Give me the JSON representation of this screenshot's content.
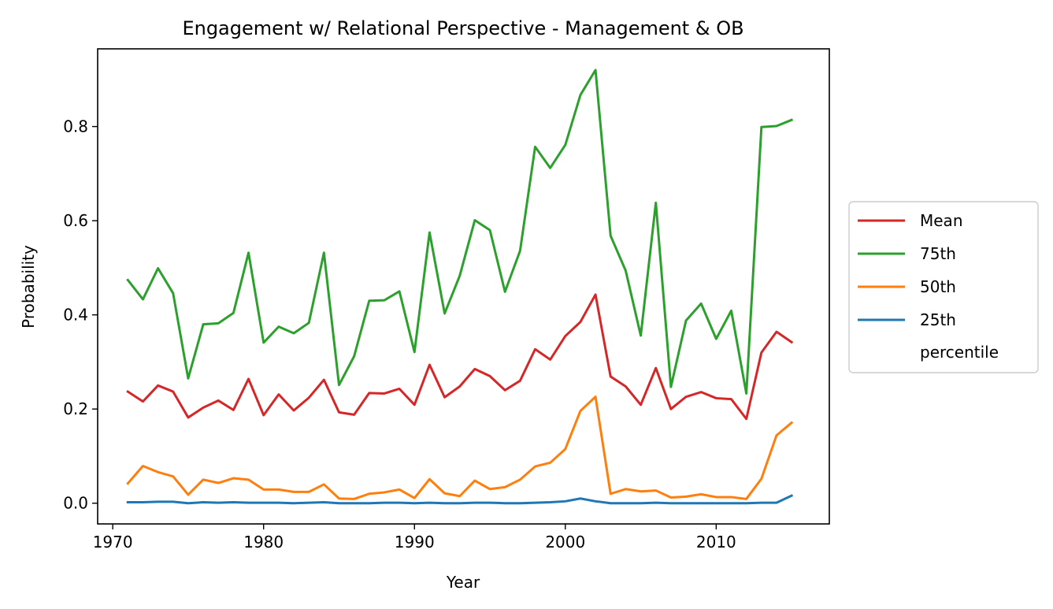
{
  "chart_data": {
    "type": "line",
    "title": "Engagement w/ Relational Perspective - Management & OB",
    "xlabel": "Year",
    "ylabel": "Probability",
    "xlim": [
      1969,
      2017.5
    ],
    "ylim": [
      -0.044,
      0.965
    ],
    "xticks": [
      1970,
      1980,
      1990,
      2000,
      2010
    ],
    "yticks": [
      0.0,
      0.2,
      0.4,
      0.6,
      0.8
    ],
    "ytick_labels": [
      "0.0",
      "0.2",
      "0.4",
      "0.6",
      "0.8"
    ],
    "grid": false,
    "legend_placement": "right-outside",
    "legend_extra_text": "percentile",
    "x": [
      1971,
      1972,
      1973,
      1974,
      1975,
      1976,
      1977,
      1978,
      1979,
      1980,
      1981,
      1982,
      1983,
      1984,
      1985,
      1986,
      1987,
      1988,
      1989,
      1990,
      1991,
      1992,
      1993,
      1994,
      1995,
      1996,
      1997,
      1998,
      1999,
      2000,
      2001,
      2002,
      2003,
      2004,
      2005,
      2006,
      2007,
      2008,
      2009,
      2010,
      2011,
      2012,
      2013,
      2014,
      2015
    ],
    "series": [
      {
        "name": "Mean",
        "color": "#d62728",
        "values": [
          0.237,
          0.216,
          0.25,
          0.237,
          0.182,
          0.203,
          0.218,
          0.198,
          0.264,
          0.187,
          0.231,
          0.197,
          0.224,
          0.262,
          0.193,
          0.188,
          0.234,
          0.233,
          0.243,
          0.209,
          0.294,
          0.225,
          0.248,
          0.285,
          0.27,
          0.24,
          0.26,
          0.327,
          0.305,
          0.355,
          0.385,
          0.443,
          0.269,
          0.248,
          0.209,
          0.287,
          0.2,
          0.226,
          0.236,
          0.223,
          0.221,
          0.179,
          0.32,
          0.364,
          0.342
        ]
      },
      {
        "name": "75th",
        "color": "#2ca02c",
        "values": [
          0.474,
          0.433,
          0.499,
          0.446,
          0.265,
          0.38,
          0.382,
          0.404,
          0.532,
          0.341,
          0.375,
          0.361,
          0.383,
          0.532,
          0.251,
          0.312,
          0.43,
          0.431,
          0.45,
          0.321,
          0.575,
          0.403,
          0.483,
          0.601,
          0.58,
          0.449,
          0.536,
          0.757,
          0.712,
          0.761,
          0.867,
          0.92,
          0.568,
          0.494,
          0.356,
          0.638,
          0.247,
          0.388,
          0.424,
          0.349,
          0.409,
          0.233,
          0.799,
          0.801,
          0.814
        ]
      },
      {
        "name": "50th",
        "color": "#ff7f0e",
        "values": [
          0.042,
          0.079,
          0.066,
          0.057,
          0.018,
          0.05,
          0.043,
          0.053,
          0.05,
          0.029,
          0.029,
          0.024,
          0.024,
          0.04,
          0.01,
          0.009,
          0.02,
          0.023,
          0.029,
          0.011,
          0.051,
          0.021,
          0.015,
          0.048,
          0.03,
          0.034,
          0.05,
          0.078,
          0.086,
          0.115,
          0.196,
          0.226,
          0.02,
          0.03,
          0.025,
          0.027,
          0.012,
          0.014,
          0.019,
          0.013,
          0.013,
          0.009,
          0.052,
          0.144,
          0.171
        ]
      },
      {
        "name": "25th",
        "color": "#1f77b4",
        "values": [
          0.002,
          0.002,
          0.003,
          0.003,
          0.0,
          0.002,
          0.001,
          0.002,
          0.001,
          0.001,
          0.001,
          0.0,
          0.001,
          0.002,
          0.0,
          0.0,
          0.0,
          0.001,
          0.001,
          0.0,
          0.001,
          0.0,
          0.0,
          0.001,
          0.001,
          0.0,
          0.0,
          0.001,
          0.002,
          0.004,
          0.01,
          0.004,
          0.0,
          0.0,
          0.0,
          0.001,
          0.0,
          0.0,
          0.0,
          0.0,
          0.0,
          0.0,
          0.001,
          0.001,
          0.016
        ]
      }
    ]
  }
}
